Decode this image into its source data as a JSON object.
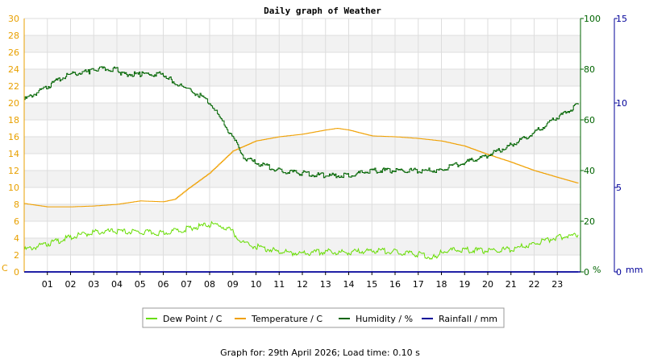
{
  "chart_data": {
    "type": "line",
    "title": "Daily graph of Weather",
    "x_ticks": [
      "01",
      "02",
      "03",
      "04",
      "05",
      "06",
      "07",
      "08",
      "09",
      "10",
      "11",
      "12",
      "13",
      "14",
      "15",
      "16",
      "17",
      "18",
      "19",
      "20",
      "21",
      "22",
      "23"
    ],
    "x_range": [
      0,
      24
    ],
    "left_axis": {
      "unit": "C",
      "range": [
        0,
        30
      ],
      "ticks": [
        "0",
        "2",
        "4",
        "6",
        "8",
        "10",
        "12",
        "14",
        "16",
        "18",
        "20",
        "22",
        "24",
        "26",
        "28",
        "30"
      ],
      "color": "#e8a000"
    },
    "right_axis_1": {
      "unit": "%",
      "range": [
        0,
        100
      ],
      "ticks": [
        "0",
        "20",
        "40",
        "60",
        "80",
        "100"
      ],
      "color": "#006400"
    },
    "right_axis_2": {
      "unit": "mm",
      "range": [
        0,
        15
      ],
      "ticks": [
        "0",
        "5",
        "10",
        "15"
      ],
      "color": "#000099"
    },
    "grid": true,
    "legend_position": "bottom",
    "series": [
      {
        "name": "Dew Point / C",
        "axis": "left",
        "color": "#66dd00",
        "x": [
          0,
          1,
          2,
          3,
          4,
          5,
          6,
          7,
          8,
          8.5,
          9,
          9.5,
          10,
          11,
          12,
          13,
          14,
          15,
          16,
          17,
          17.8,
          18,
          19,
          20,
          21,
          22,
          23,
          23.9
        ],
        "y": [
          2.6,
          3.3,
          4.1,
          4.7,
          4.8,
          4.7,
          4.6,
          5.1,
          5.6,
          5.5,
          4.7,
          3.3,
          3.0,
          2.4,
          2.2,
          2.4,
          2.3,
          2.5,
          2.4,
          2.1,
          1.7,
          2.5,
          2.6,
          2.5,
          2.7,
          3.3,
          4.1,
          4.4
        ]
      },
      {
        "name": "Temperature / C",
        "axis": "left",
        "color": "#f0a000",
        "x": [
          0,
          1,
          2,
          3,
          4,
          5,
          6,
          6.5,
          7,
          8,
          9,
          10,
          11,
          12,
          13,
          13.5,
          14,
          15,
          16,
          17,
          18,
          19,
          20,
          21,
          22,
          23,
          23.9
        ],
        "y": [
          8.1,
          7.7,
          7.7,
          7.8,
          8.0,
          8.4,
          8.3,
          8.6,
          9.7,
          11.7,
          14.3,
          15.5,
          16.0,
          16.3,
          16.8,
          17.0,
          16.8,
          16.1,
          16.0,
          15.8,
          15.5,
          14.9,
          13.9,
          13.0,
          12.0,
          11.2,
          10.5
        ]
      },
      {
        "name": "Humidity / %",
        "axis": "right1",
        "color": "#006400",
        "x": [
          0,
          1,
          1.5,
          2,
          2.8,
          3,
          4,
          4.2,
          5,
          6,
          6.3,
          7,
          7.5,
          8,
          8.5,
          9,
          9.5,
          10,
          11,
          12,
          13,
          14,
          15,
          16,
          17,
          18,
          18.5,
          19,
          20,
          21,
          22,
          23,
          23.9
        ],
        "y": [
          68,
          73,
          76,
          78,
          79,
          80,
          80,
          78,
          78,
          78,
          76,
          72,
          70,
          67,
          60,
          53,
          45,
          43,
          40,
          39,
          38,
          38,
          40,
          40,
          40,
          40,
          42,
          43,
          46,
          50,
          55,
          61,
          66
        ]
      },
      {
        "name": "Rainfall / mm",
        "axis": "right2",
        "color": "#000099",
        "x": [
          0,
          23.9
        ],
        "y": [
          0,
          0
        ]
      }
    ]
  },
  "footer": "Graph for: 29th April 2026; Load time: 0.10 s"
}
